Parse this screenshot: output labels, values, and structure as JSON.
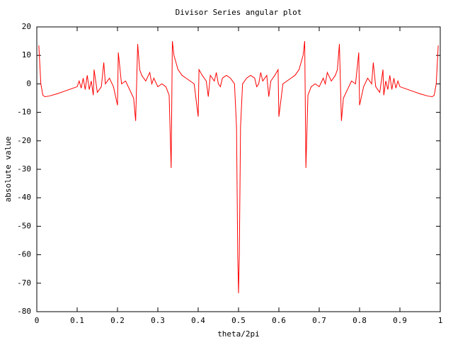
{
  "chart_data": {
    "type": "line",
    "title": "Divisor Series angular plot",
    "xlabel": "theta/2pi",
    "ylabel": "absolute value",
    "x": [
      0.005,
      0.01,
      0.015,
      0.02,
      0.03,
      0.05,
      0.07,
      0.09,
      0.1,
      0.105,
      0.11,
      0.115,
      0.12,
      0.125,
      0.13,
      0.135,
      0.14,
      0.142,
      0.15,
      0.16,
      0.166,
      0.17,
      0.18,
      0.19,
      0.2,
      0.202,
      0.21,
      0.22,
      0.23,
      0.24,
      0.245,
      0.25,
      0.255,
      0.26,
      0.27,
      0.28,
      0.285,
      0.29,
      0.3,
      0.31,
      0.32,
      0.328,
      0.333,
      0.336,
      0.34,
      0.35,
      0.36,
      0.37,
      0.38,
      0.39,
      0.4,
      0.402,
      0.41,
      0.42,
      0.425,
      0.43,
      0.44,
      0.445,
      0.45,
      0.455,
      0.46,
      0.47,
      0.48,
      0.49,
      0.495,
      0.498,
      0.5,
      0.502,
      0.505,
      0.51,
      0.52,
      0.53,
      0.54,
      0.545,
      0.55,
      0.555,
      0.56,
      0.57,
      0.575,
      0.58,
      0.59,
      0.598,
      0.6,
      0.61,
      0.62,
      0.63,
      0.64,
      0.65,
      0.66,
      0.664,
      0.667,
      0.672,
      0.68,
      0.69,
      0.7,
      0.71,
      0.715,
      0.72,
      0.73,
      0.74,
      0.745,
      0.75,
      0.755,
      0.76,
      0.77,
      0.78,
      0.79,
      0.798,
      0.8,
      0.81,
      0.82,
      0.83,
      0.834,
      0.84,
      0.85,
      0.858,
      0.86,
      0.865,
      0.87,
      0.875,
      0.88,
      0.885,
      0.89,
      0.895,
      0.9,
      0.91,
      0.93,
      0.95,
      0.97,
      0.98,
      0.985,
      0.99,
      0.995
    ],
    "values": [
      13.5,
      0,
      -4,
      -4.5,
      -4.3,
      -3.5,
      -2.5,
      -1.5,
      -1,
      1,
      -1.5,
      2,
      -2,
      3,
      -2,
      1,
      -4,
      5,
      -3,
      -1,
      7.5,
      0,
      2,
      -1,
      -7.5,
      11,
      0,
      1,
      -2,
      -5,
      -13,
      14,
      5,
      3,
      1,
      4,
      0,
      2,
      -1,
      0,
      -1,
      -4,
      -29.5,
      15,
      10,
      5,
      3,
      2,
      1,
      0,
      -11.5,
      5,
      3,
      1,
      -4.5,
      3,
      1,
      4,
      0,
      -1,
      2,
      3,
      2,
      0,
      -15,
      -60,
      -73.5,
      -60,
      -15,
      0,
      2,
      3,
      2,
      -1,
      0,
      4,
      1,
      3,
      -4.5,
      1,
      3,
      5,
      -11.5,
      0,
      1,
      2,
      3,
      5,
      10,
      15,
      -29.5,
      -4,
      -1,
      0,
      -1,
      2,
      0,
      4,
      1,
      3,
      5,
      14,
      -13,
      -5,
      -2,
      1,
      0,
      11,
      -7.5,
      -1,
      2,
      0,
      7.5,
      -1,
      -3,
      5,
      -4,
      1,
      -2,
      3,
      -2,
      2,
      -1.5,
      1,
      -1,
      -1.5,
      -2.5,
      -3.5,
      -4.3,
      -4.5,
      -4,
      0,
      13.5
    ],
    "color": "#ff0000",
    "xlim": [
      0,
      1
    ],
    "xticks": [
      0,
      0.1,
      0.2,
      0.3,
      0.4,
      0.5,
      0.6,
      0.7,
      0.8,
      0.9,
      1
    ],
    "ylim": [
      -80,
      20
    ],
    "yticks": [
      -80,
      -70,
      -60,
      -50,
      -40,
      -30,
      -20,
      -10,
      0,
      10,
      20
    ]
  }
}
